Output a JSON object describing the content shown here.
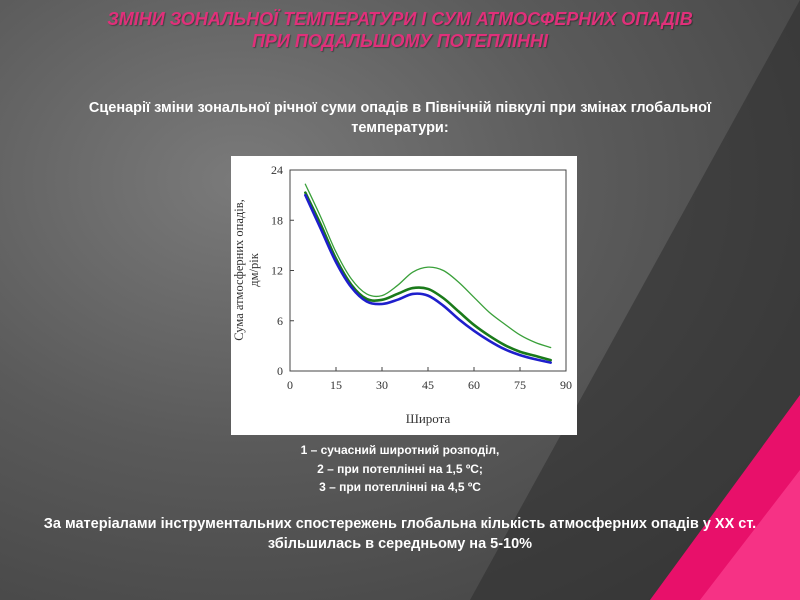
{
  "title": {
    "line1": "ЗМІНИ ЗОНАЛЬНОЇ  ТЕМПЕРАТУРИ І  СУМ АТМОСФЕРНИХ ОПАДІВ",
    "line2": "ПРИ ПОДАЛЬШОМУ ПОТЕПЛІННІ"
  },
  "subtitle": "Сценарії зміни зональної річної суми опадів в Північній півкулі при змінах глобальної температури:",
  "legend": {
    "item1": "1 – сучасний широтний розподіл,",
    "item2": "2 – при потеплінні на 1,5 ºС;",
    "item3": "3 – при потеплінні на 4,5 ºС"
  },
  "note": "За матеріалами інструментальних спостережень глобальна  кількість атмосферних опадів у ХХ ст. збільшилась в середньому  на 5-10%",
  "colors": {
    "title": "#e0307a",
    "series_current": "#1f1fcc",
    "series_1_5": "#1a7a1a",
    "series_4_5": "#3aa03a",
    "accent_pink": "#e8106a"
  },
  "chart_data": {
    "type": "line",
    "xlabel": "Широта",
    "ylabel": "Сума атмосферних опадів, дм/рік",
    "xlim": [
      0,
      90
    ],
    "ylim": [
      0,
      24
    ],
    "xticks": [
      "0",
      "15",
      "30",
      "45",
      "60",
      "75",
      "90"
    ],
    "yticks": [
      "0",
      "6",
      "12",
      "18",
      "24"
    ],
    "grid": false,
    "series": [
      {
        "key": "current",
        "x": [
          5,
          10,
          15,
          20,
          25,
          30,
          35,
          40,
          45,
          50,
          55,
          60,
          65,
          70,
          75,
          80,
          85
        ],
        "y": [
          21,
          17,
          13,
          10,
          8.3,
          8,
          8.5,
          9.2,
          9,
          7.8,
          6.2,
          4.8,
          3.6,
          2.6,
          1.9,
          1.4,
          1.0
        ]
      },
      {
        "key": "warm_1_5",
        "x": [
          5,
          10,
          15,
          20,
          25,
          30,
          35,
          40,
          45,
          50,
          55,
          60,
          65,
          70,
          75,
          80,
          85
        ],
        "y": [
          21.3,
          17.5,
          13.4,
          10.3,
          8.6,
          8.5,
          9.2,
          9.9,
          9.8,
          8.7,
          7.1,
          5.5,
          4.2,
          3.1,
          2.3,
          1.8,
          1.3
        ]
      },
      {
        "key": "warm_4_5",
        "x": [
          5,
          10,
          15,
          20,
          25,
          30,
          35,
          40,
          45,
          50,
          55,
          60,
          65,
          70,
          75,
          80,
          85
        ],
        "y": [
          22.3,
          18.4,
          14.2,
          11,
          9.2,
          9,
          10.2,
          11.8,
          12.4,
          12,
          10.6,
          8.8,
          7,
          5.6,
          4.3,
          3.4,
          2.8
        ]
      }
    ]
  }
}
